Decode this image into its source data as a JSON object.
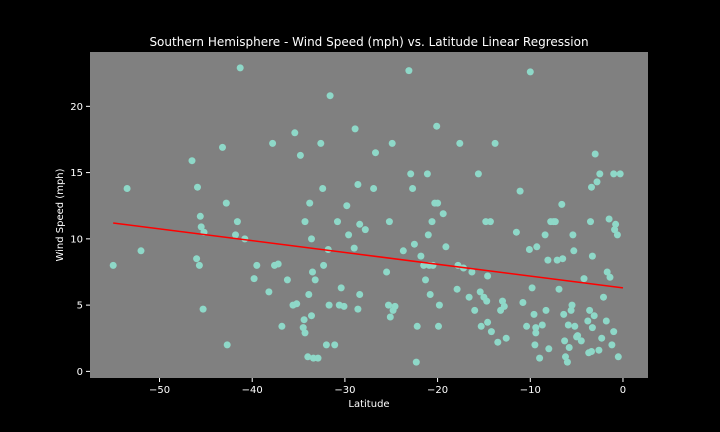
{
  "chart_data": {
    "type": "scatter",
    "title": "Southern Hemisphere - Wind Speed (mph) vs. Latitude Linear Regression",
    "xlabel": "Latitude",
    "ylabel": "Wind Speed (mph)",
    "xlim": [
      -57.5,
      2.7
    ],
    "ylim": [
      -0.5,
      24.1
    ],
    "xticks": [
      -50,
      -40,
      -30,
      -20,
      -10,
      0
    ],
    "yticks": [
      0,
      5,
      10,
      15,
      20
    ],
    "grid": false,
    "legend": "none",
    "colors": {
      "figure_background": "#000000",
      "axes_background": "#808080",
      "points": "#8ed8c8",
      "regression_line": "#ff0000",
      "text": "#ffffff"
    },
    "regression_line": {
      "x": [
        -55,
        0
      ],
      "y": [
        11.2,
        6.3
      ]
    },
    "points": [
      [
        -55,
        8
      ],
      [
        -53.5,
        13.8
      ],
      [
        -52,
        9.1
      ],
      [
        -46.5,
        15.9
      ],
      [
        -46,
        8.5
      ],
      [
        -45.9,
        13.9
      ],
      [
        -45.7,
        8
      ],
      [
        -45.6,
        11.7
      ],
      [
        -45.5,
        10.9
      ],
      [
        -45.2,
        10.5
      ],
      [
        -45.3,
        4.7
      ],
      [
        -43.2,
        16.9
      ],
      [
        -42.8,
        12.7
      ],
      [
        -42.7,
        2
      ],
      [
        -41.8,
        10.3
      ],
      [
        -41.6,
        11.3
      ],
      [
        -41.3,
        22.9
      ],
      [
        -40.8,
        10
      ],
      [
        -39.8,
        7
      ],
      [
        -39.5,
        8
      ],
      [
        -38.2,
        6
      ],
      [
        -37.6,
        8
      ],
      [
        -37.8,
        17.2
      ],
      [
        -37.2,
        8.1
      ],
      [
        -36.8,
        3.4
      ],
      [
        -36.2,
        6.9
      ],
      [
        -35.6,
        5
      ],
      [
        -35.4,
        18
      ],
      [
        -35.2,
        5.1
      ],
      [
        -34.8,
        16.3
      ],
      [
        -34.5,
        3.3
      ],
      [
        -34.4,
        3.9
      ],
      [
        -34.3,
        11.3
      ],
      [
        -34.3,
        2.9
      ],
      [
        -34,
        1.1
      ],
      [
        -33.9,
        5.8
      ],
      [
        -33.8,
        12.7
      ],
      [
        -33.5,
        7.5
      ],
      [
        -33.6,
        10
      ],
      [
        -33.6,
        4.2
      ],
      [
        -33.4,
        1
      ],
      [
        -33.2,
        6.9
      ],
      [
        -32.9,
        1
      ],
      [
        -32.6,
        17.2
      ],
      [
        -32.4,
        13.8
      ],
      [
        -32.3,
        8
      ],
      [
        -32,
        2
      ],
      [
        -31.8,
        9.2
      ],
      [
        -31.6,
        20.8
      ],
      [
        -31.7,
        5
      ],
      [
        -31.1,
        2
      ],
      [
        -30.8,
        11.3
      ],
      [
        -30.6,
        5
      ],
      [
        -30.4,
        6.3
      ],
      [
        -30.1,
        4.9
      ],
      [
        -29.8,
        12.5
      ],
      [
        -29.6,
        10.3
      ],
      [
        -29,
        9.3
      ],
      [
        -28.9,
        18.3
      ],
      [
        -28.6,
        14.1
      ],
      [
        -28.4,
        11.1
      ],
      [
        -28.4,
        5.8
      ],
      [
        -28.6,
        4.7
      ],
      [
        -27.8,
        10.7
      ],
      [
        -26.9,
        13.8
      ],
      [
        -26.7,
        16.5
      ],
      [
        -25.5,
        7.5
      ],
      [
        -25.2,
        11.3
      ],
      [
        -25.3,
        5
      ],
      [
        -25.1,
        4.1
      ],
      [
        -24.9,
        17.2
      ],
      [
        -24.8,
        4.6
      ],
      [
        -24.6,
        4.9
      ],
      [
        -23.7,
        9.1
      ],
      [
        -23.1,
        22.7
      ],
      [
        -22.9,
        14.9
      ],
      [
        -22.7,
        13.8
      ],
      [
        -22.5,
        9.6
      ],
      [
        -22.3,
        0.7
      ],
      [
        -22.2,
        3.4
      ],
      [
        -21.8,
        8.7
      ],
      [
        -21.5,
        8
      ],
      [
        -21.3,
        6.9
      ],
      [
        -21.1,
        14.9
      ],
      [
        -20.9,
        8
      ],
      [
        -20.8,
        5.8
      ],
      [
        -21,
        10.3
      ],
      [
        -20.5,
        8
      ],
      [
        -20.6,
        11.3
      ],
      [
        -20.3,
        12.7
      ],
      [
        -20.1,
        18.5
      ],
      [
        -20,
        12.7
      ],
      [
        -19.9,
        3.4
      ],
      [
        -19.8,
        5
      ],
      [
        -19.4,
        11.9
      ],
      [
        -19.1,
        9.4
      ],
      [
        -17.9,
        6.2
      ],
      [
        -17.8,
        8
      ],
      [
        -17.6,
        17.2
      ],
      [
        -17.2,
        7.8
      ],
      [
        -16.6,
        5.6
      ],
      [
        -16.3,
        7.5
      ],
      [
        -16,
        4.6
      ],
      [
        -15.6,
        14.9
      ],
      [
        -15.4,
        6
      ],
      [
        -15.3,
        3.4
      ],
      [
        -15,
        5.6
      ],
      [
        -14.8,
        11.3
      ],
      [
        -14.7,
        5.3
      ],
      [
        -14.6,
        3.7
      ],
      [
        -14.6,
        7.2
      ],
      [
        -14.3,
        11.3
      ],
      [
        -14.2,
        3
      ],
      [
        -13.8,
        17.2
      ],
      [
        -13.5,
        2.2
      ],
      [
        -13.2,
        4.6
      ],
      [
        -13,
        5.3
      ],
      [
        -12.8,
        4.9
      ],
      [
        -12.6,
        2.5
      ],
      [
        -11.5,
        10.5
      ],
      [
        -11.1,
        13.6
      ],
      [
        -10.8,
        5.2
      ],
      [
        -10.4,
        3.4
      ],
      [
        -10.1,
        9.2
      ],
      [
        -10,
        22.6
      ],
      [
        -9.8,
        6.3
      ],
      [
        -9.6,
        4.3
      ],
      [
        -9.4,
        3.3
      ],
      [
        -9.5,
        2
      ],
      [
        -9.4,
        2.9
      ],
      [
        -9.3,
        9.4
      ],
      [
        -9,
        1
      ],
      [
        -8.7,
        3.5
      ],
      [
        -8.4,
        10.3
      ],
      [
        -8.3,
        4.6
      ],
      [
        -8.1,
        8.4
      ],
      [
        -8,
        1.7
      ],
      [
        -7.8,
        11.3
      ],
      [
        -7.5,
        11.3
      ],
      [
        -7.3,
        11.3
      ],
      [
        -7.1,
        8.4
      ],
      [
        -6.9,
        6.2
      ],
      [
        -6.6,
        12.6
      ],
      [
        -6.5,
        8.5
      ],
      [
        -6.4,
        4.3
      ],
      [
        -6.3,
        2.3
      ],
      [
        -6.2,
        1.1
      ],
      [
        -6,
        0.7
      ],
      [
        -5.9,
        3.5
      ],
      [
        -5.8,
        1.8
      ],
      [
        -5.6,
        4.6
      ],
      [
        -5.5,
        5
      ],
      [
        -5.4,
        10.3
      ],
      [
        -5.3,
        9.1
      ],
      [
        -5.2,
        3.4
      ],
      [
        -5,
        2.6
      ],
      [
        -4.9,
        2.7
      ],
      [
        -4.5,
        2.3
      ],
      [
        -4.2,
        7
      ],
      [
        -3.8,
        3.8
      ],
      [
        -3.7,
        1.4
      ],
      [
        -3.6,
        4.6
      ],
      [
        -3.4,
        13.9
      ],
      [
        -3.5,
        11.3
      ],
      [
        -3.3,
        3.3
      ],
      [
        -3.4,
        1.5
      ],
      [
        -3.3,
        8.7
      ],
      [
        -3.1,
        4.2
      ],
      [
        -3,
        16.4
      ],
      [
        -2.8,
        14.3
      ],
      [
        -2.6,
        1.6
      ],
      [
        -2.5,
        14.9
      ],
      [
        -2.3,
        2.5
      ],
      [
        -2.1,
        5.6
      ],
      [
        -1.8,
        3.8
      ],
      [
        -1.7,
        7.5
      ],
      [
        -1.5,
        11.5
      ],
      [
        -1.4,
        7.1
      ],
      [
        -1.2,
        2
      ],
      [
        -1,
        14.9
      ],
      [
        -1,
        3
      ],
      [
        -0.8,
        11.1
      ],
      [
        -0.9,
        10.7
      ],
      [
        -0.6,
        10.3
      ],
      [
        -0.5,
        1.1
      ],
      [
        -0.3,
        14.9
      ]
    ]
  }
}
